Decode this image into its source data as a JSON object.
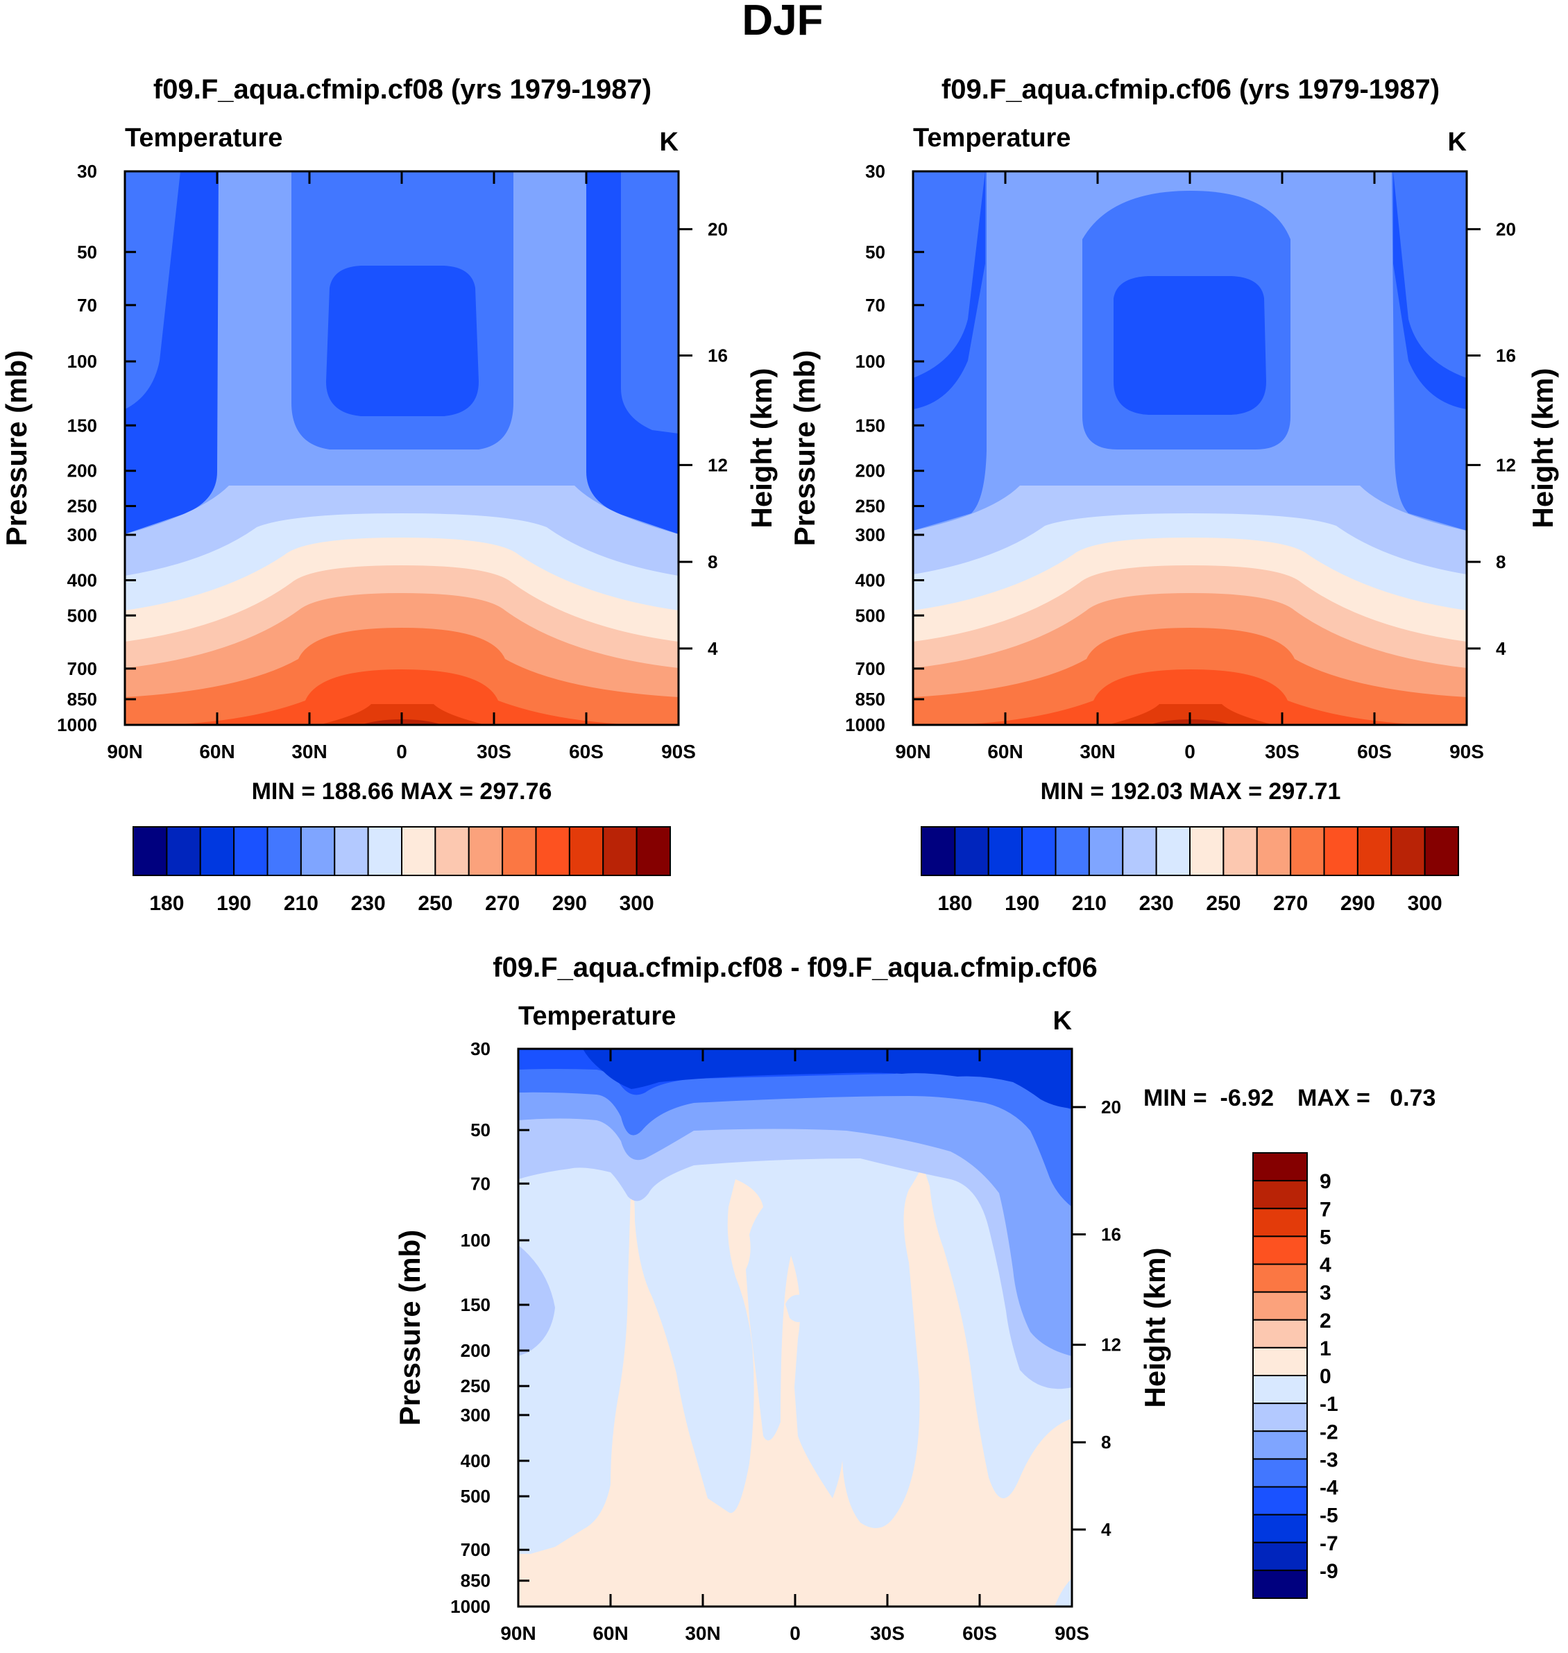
{
  "page_title": "DJF",
  "colorbar_fills": [
    "#00007f",
    "#0025bd",
    "#0038e0",
    "#1a52ff",
    "#4277ff",
    "#7fa5ff",
    "#b3c9ff",
    "#d8e8ff",
    "#feeadb",
    "#fcc8b0",
    "#fba27c",
    "#fb7743",
    "#fd5220",
    "#e33b0a",
    "#b92306",
    "#850000"
  ],
  "diff_colorbar_labels": [
    "9",
    "7",
    "5",
    "4",
    "3",
    "2",
    "1",
    "0",
    "-1",
    "-2",
    "-3",
    "-4",
    "-5",
    "-7",
    "-9"
  ],
  "chart_data": [
    {
      "type": "heatmap",
      "title": "f09.F_aqua.cfmip.cf08 (yrs 1979-1987)",
      "subtitle": "Temperature",
      "units": "K",
      "ylabel": "Pressure (mb)",
      "y2label": "Height (km)",
      "xticks": [
        "90N",
        "60N",
        "30N",
        "0",
        "30S",
        "60S",
        "90S"
      ],
      "yticks": [
        "30",
        "50",
        "70",
        "100",
        "150",
        "200",
        "250",
        "300",
        "400",
        "500",
        "700",
        "850",
        "1000"
      ],
      "y2ticks": [
        "20",
        "16",
        "12",
        "8",
        "4"
      ],
      "stats": "MIN = 188.66  MAX = 297.76",
      "colorbar_labels": [
        "180",
        "190",
        "210",
        "230",
        "250",
        "270",
        "290",
        "300"
      ],
      "zlim": [
        188.66,
        297.76
      ]
    },
    {
      "type": "heatmap",
      "title": "f09.F_aqua.cfmip.cf06 (yrs 1979-1987)",
      "subtitle": "Temperature",
      "units": "K",
      "ylabel": "Pressure (mb)",
      "y2label": "Height (km)",
      "xticks": [
        "90N",
        "60N",
        "30N",
        "0",
        "30S",
        "60S",
        "90S"
      ],
      "yticks": [
        "30",
        "50",
        "70",
        "100",
        "150",
        "200",
        "250",
        "300",
        "400",
        "500",
        "700",
        "850",
        "1000"
      ],
      "y2ticks": [
        "20",
        "16",
        "12",
        "8",
        "4"
      ],
      "stats": "MIN = 192.03  MAX = 297.71",
      "colorbar_labels": [
        "180",
        "190",
        "210",
        "230",
        "250",
        "270",
        "290",
        "300"
      ],
      "zlim": [
        192.03,
        297.71
      ]
    },
    {
      "type": "heatmap",
      "title": "f09.F_aqua.cfmip.cf08 - f09.F_aqua.cfmip.cf06",
      "subtitle": "Temperature",
      "units": "K",
      "ylabel": "Pressure (mb)",
      "y2label": "Height (km)",
      "xticks": [
        "90N",
        "60N",
        "30N",
        "0",
        "30S",
        "60S",
        "90S"
      ],
      "yticks": [
        "30",
        "50",
        "70",
        "100",
        "150",
        "200",
        "250",
        "300",
        "400",
        "500",
        "700",
        "850",
        "1000"
      ],
      "y2ticks": [
        "20",
        "16",
        "12",
        "8",
        "4"
      ],
      "stats_min": "MIN =  -6.92",
      "stats_max": "MAX =   0.73",
      "zlim": [
        -6.92,
        0.73
      ]
    }
  ]
}
